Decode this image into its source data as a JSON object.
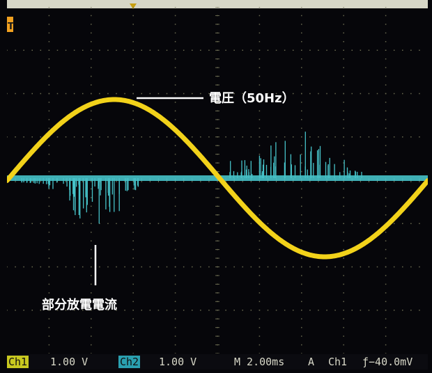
{
  "annotations": {
    "voltage_label": "電圧（50Hz）",
    "pd_label": "部分放電電流"
  },
  "statusbar": {
    "ch1_tag": "Ch1",
    "ch1_scale": "1.00 V",
    "ch2_tag": "Ch2",
    "ch2_scale": "1.00 V",
    "timebase": "M 2.00ms",
    "trigger_mode": "A",
    "trigger_source": "Ch1",
    "trigger_level": "ƒ−40.0mV"
  },
  "colors": {
    "ch1_trace": "#f2d21a",
    "ch2_trace": "#46c2c8",
    "grid": "#6a6a50",
    "background": "#06060a",
    "ch1_tag_bg": "#c8c820",
    "ch2_tag_bg": "#2aa0b0"
  },
  "icons": [
    "trigger-marker-icon",
    "trigger-position-icon"
  ]
}
